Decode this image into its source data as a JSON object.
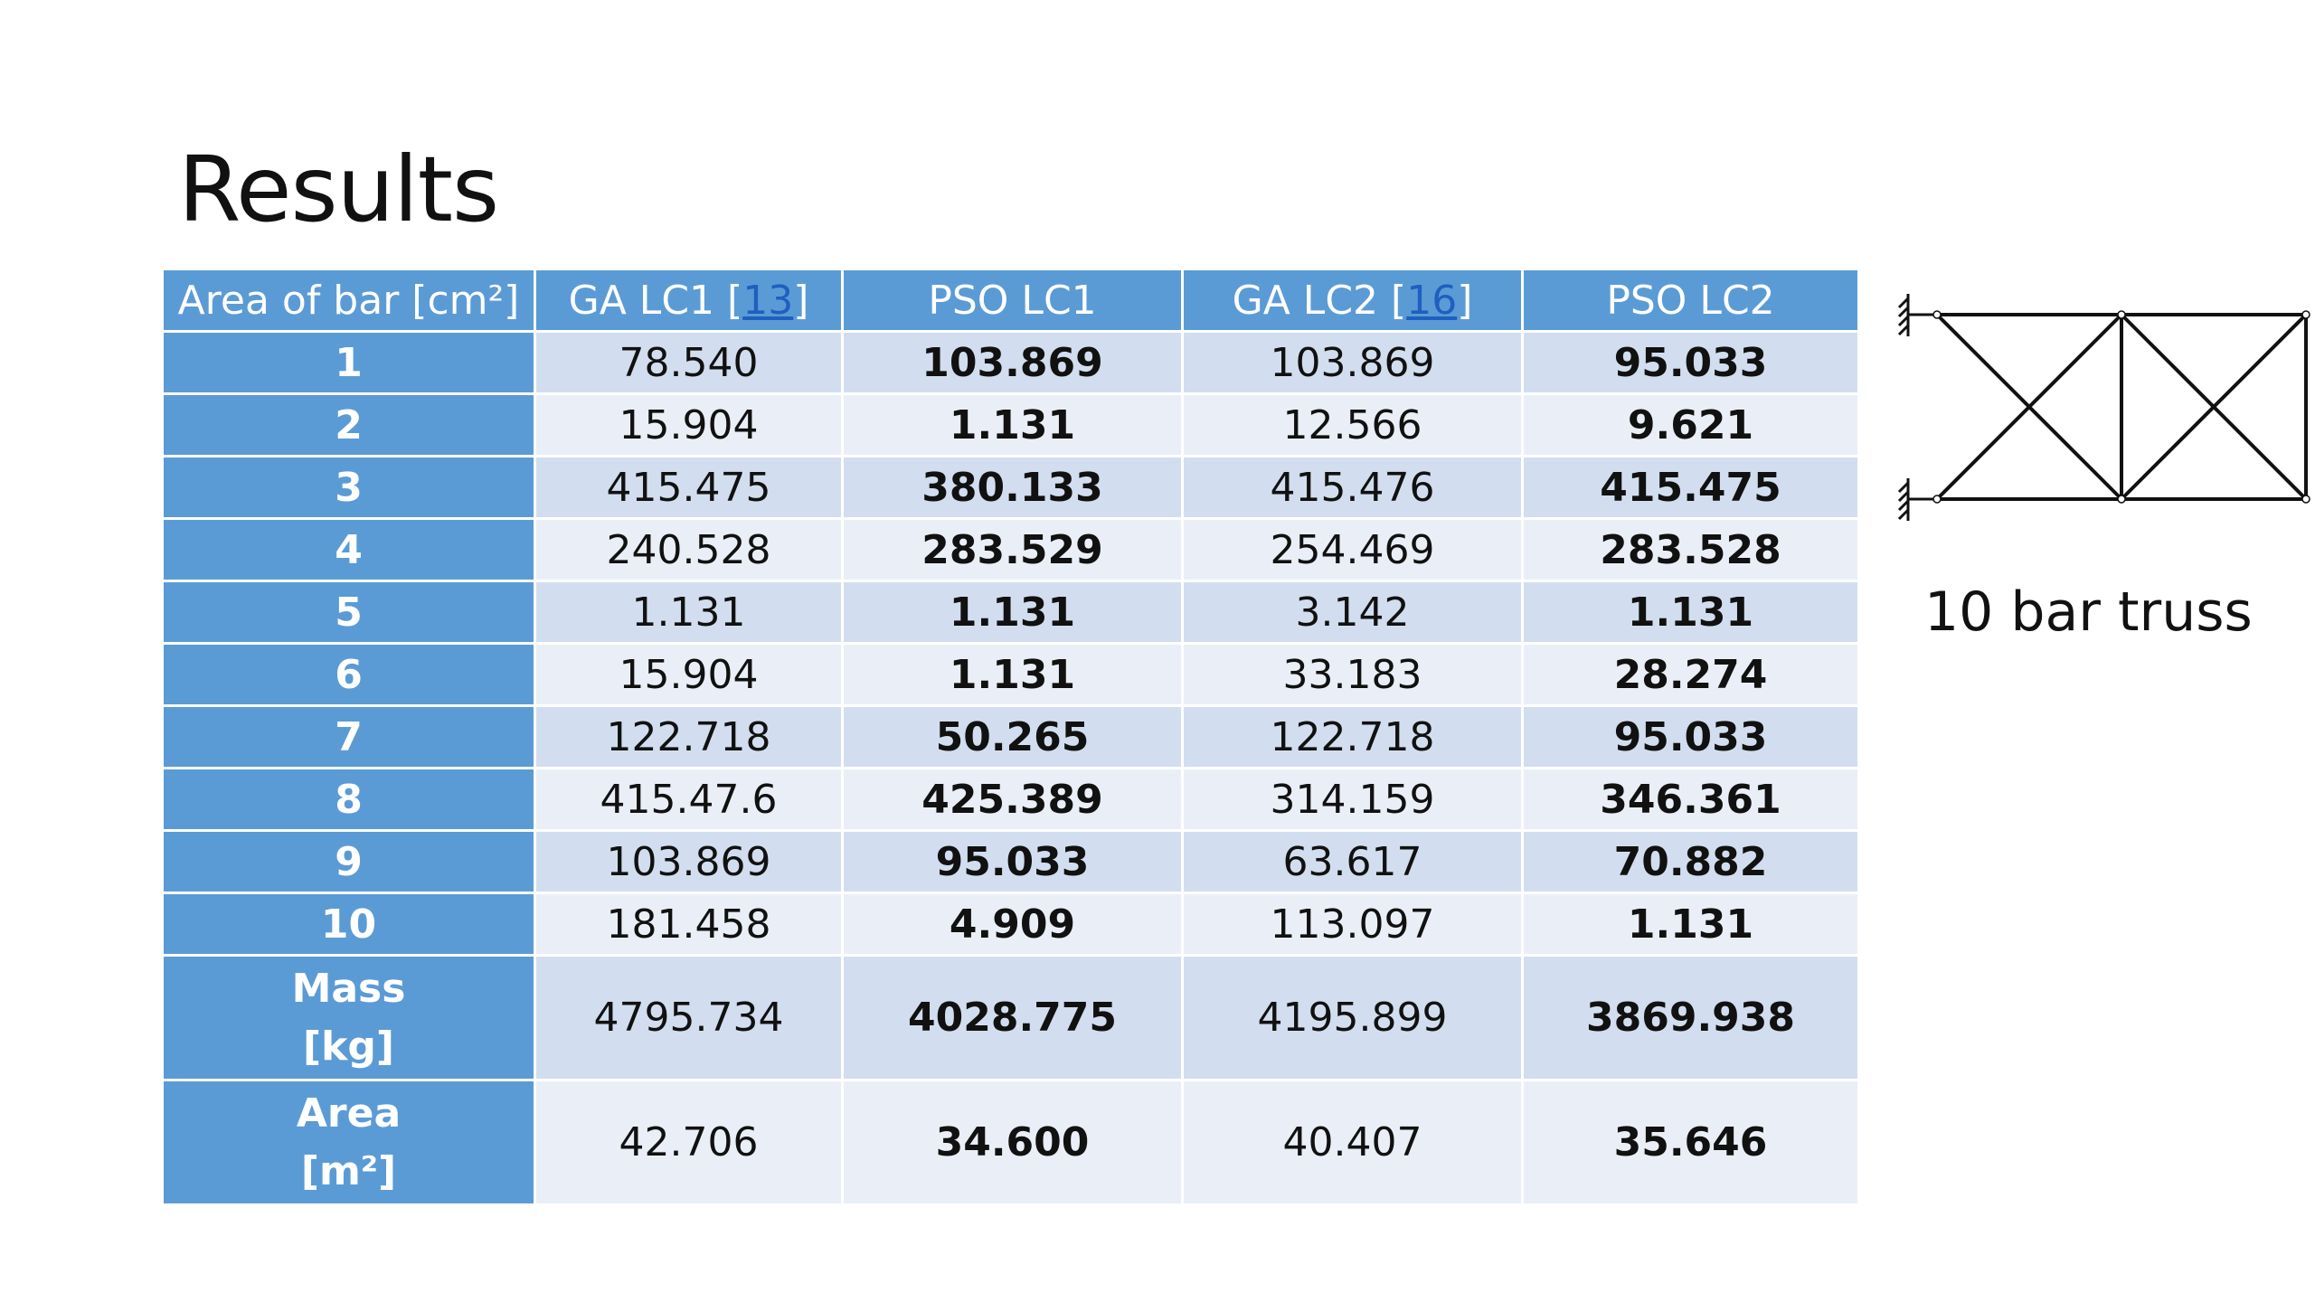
{
  "slide": {
    "title": "Results",
    "figure_caption": "10 bar truss"
  },
  "table": {
    "headers": [
      {
        "text": "Area of bar [cm²]"
      },
      {
        "text": "GA LC1 [",
        "cite": "13",
        "after": "]"
      },
      {
        "text": "PSO LC1"
      },
      {
        "text": "GA LC2 [",
        "cite": "16",
        "after": "]"
      },
      {
        "text": "PSO LC2"
      }
    ],
    "rows": [
      {
        "label": "1",
        "values": [
          "78.540",
          "103.869",
          "103.869",
          "95.033"
        ]
      },
      {
        "label": "2",
        "values": [
          "15.904",
          "1.131",
          "12.566",
          "9.621"
        ]
      },
      {
        "label": "3",
        "values": [
          "415.475",
          "380.133",
          "415.476",
          "415.475"
        ]
      },
      {
        "label": "4",
        "values": [
          "240.528",
          "283.529",
          "254.469",
          "283.528"
        ]
      },
      {
        "label": "5",
        "values": [
          "1.131",
          "1.131",
          "3.142",
          "1.131"
        ]
      },
      {
        "label": "6",
        "values": [
          "15.904",
          "1.131",
          "33.183",
          "28.274"
        ]
      },
      {
        "label": "7",
        "values": [
          "122.718",
          "50.265",
          "122.718",
          "95.033"
        ]
      },
      {
        "label": "8",
        "values": [
          "415.47.6",
          "425.389",
          "314.159",
          "346.361"
        ]
      },
      {
        "label": "9",
        "values": [
          "103.869",
          "95.033",
          "63.617",
          "70.882"
        ]
      },
      {
        "label": "10",
        "values": [
          "181.458",
          "4.909",
          "113.097",
          "1.131"
        ]
      },
      {
        "label_line1": "Mass",
        "label_line2": "[kg]",
        "values": [
          "4795.734",
          "4028.775",
          "4195.899",
          "3869.938"
        ]
      },
      {
        "label_line1": "Area",
        "label_line2": "[m²]",
        "values": [
          "42.706",
          "34.600",
          "40.407",
          "35.646"
        ]
      }
    ]
  },
  "colors": {
    "header_bg": "#5b9bd5",
    "row_dark": "#d2deef",
    "row_light": "#eaeff7",
    "citation_link": "#1f5fbf"
  },
  "icons": {
    "truss_diagram": "ten-bar-truss-diagram"
  }
}
